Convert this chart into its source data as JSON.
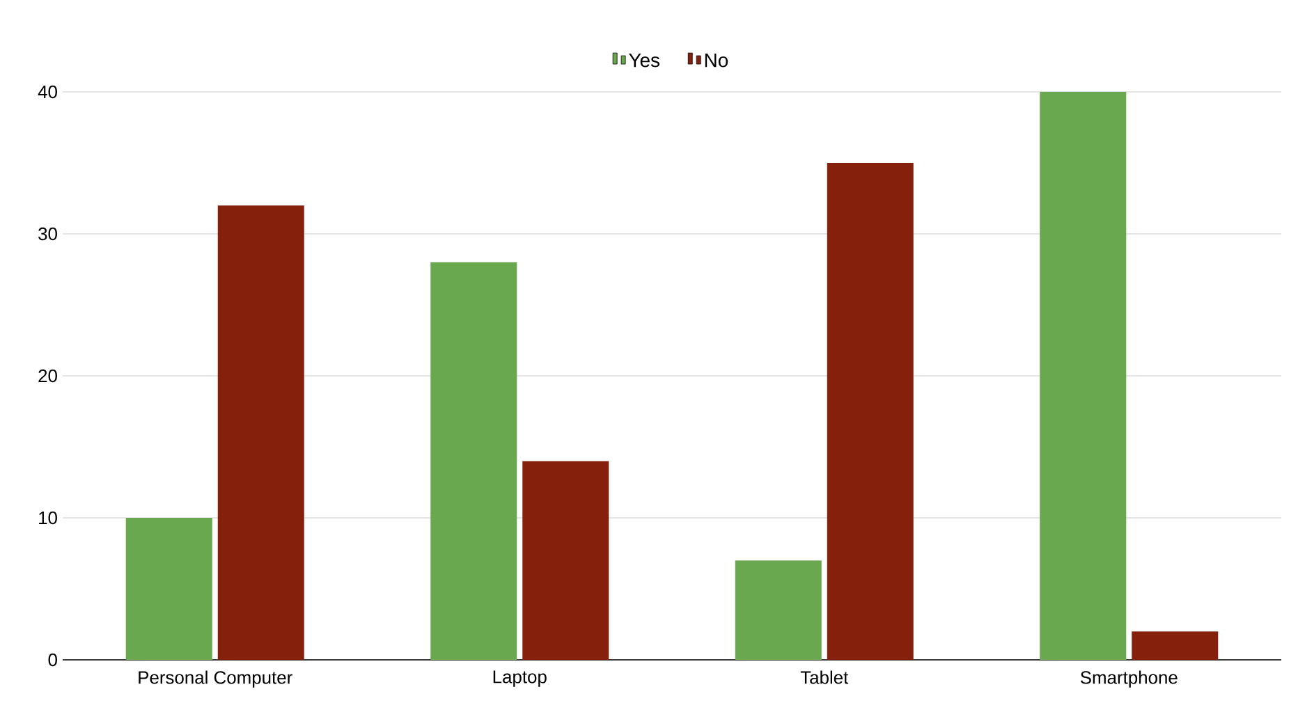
{
  "chart_data": {
    "type": "bar",
    "categories": [
      "Personal Computer",
      "Laptop",
      "Tablet",
      "Smartphone"
    ],
    "series": [
      {
        "name": "Yes",
        "color": "#6aa84f",
        "values": [
          10,
          28,
          7,
          40
        ]
      },
      {
        "name": "No",
        "color": "#85200c",
        "values": [
          32,
          14,
          35,
          2
        ]
      }
    ],
    "ylim": [
      0,
      40
    ],
    "yticks": [
      0,
      10,
      20,
      30,
      40
    ],
    "grid": "y",
    "legend": "top"
  }
}
